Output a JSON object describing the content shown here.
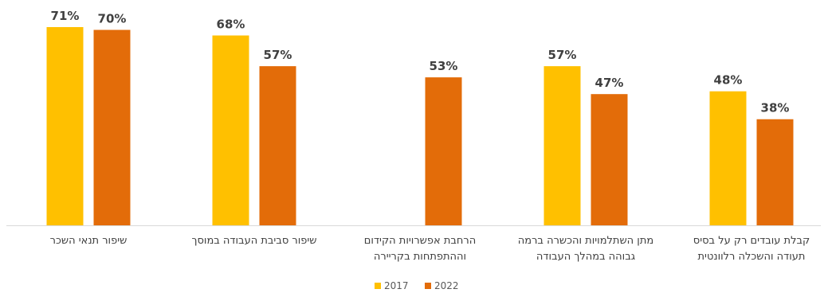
{
  "chart_data": {
    "type": "bar",
    "title": "",
    "xlabel": "",
    "ylabel": "",
    "ylim": [
      0,
      75
    ],
    "grid": false,
    "legend_position": "bottom",
    "categories": [
      [
        "שיפור תנאי השכר"
      ],
      [
        "שיפור סביבת העבודה במוסך"
      ],
      [
        "הרחבת אפשרויות הקידום",
        "וההתפתחות בקריירה"
      ],
      [
        "מתן השתלמויות והכשרה ברמה",
        "גבוהה במהלך העבודה"
      ],
      [
        "קבלת עובדים רק על בסיס",
        "תעודה והשכלה רלוונטית"
      ]
    ],
    "series": [
      {
        "name": "2017",
        "color": "#FFC000",
        "values": [
          71,
          68,
          null,
          57,
          48
        ],
        "labels": [
          "71%",
          "68%",
          "",
          "57%",
          "48%"
        ]
      },
      {
        "name": "2022",
        "color": "#E36C09",
        "values": [
          70,
          57,
          53,
          47,
          38
        ],
        "labels": [
          "70%",
          "57%",
          "53%",
          "47%",
          "38%"
        ]
      }
    ]
  }
}
